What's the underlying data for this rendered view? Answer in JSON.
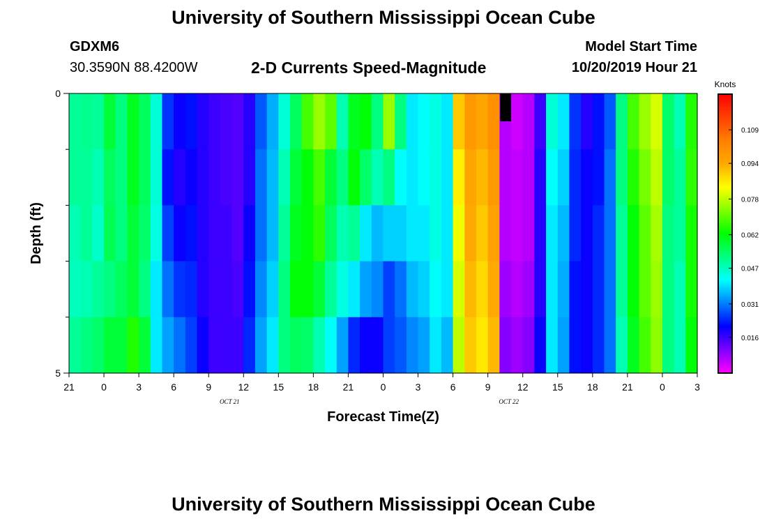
{
  "header": {
    "title": "University of Southern Mississippi Ocean Cube",
    "station_id": "GDXM6",
    "station_coords": "30.3590N 88.4200W",
    "plot_title": "2-D Currents Speed-Magnitude",
    "model_start_label": "Model Start Time",
    "model_start_value": "10/20/2019 Hour 21"
  },
  "footer": {
    "title": "University of Southern Mississippi Ocean Cube"
  },
  "chart_data": {
    "type": "heatmap",
    "xlabel": "Forecast Time(Z)",
    "ylabel": "Depth (ft)",
    "x_tick_labels": [
      "21",
      "0",
      "3",
      "6",
      "9",
      "12",
      "15",
      "18",
      "21",
      "0",
      "3",
      "6",
      "9",
      "12",
      "15",
      "18",
      "21",
      "0",
      "3"
    ],
    "date_labels": [
      {
        "label": "OCT 21",
        "tick_index": 4.6
      },
      {
        "label": "OCT 22",
        "tick_index": 12.6
      }
    ],
    "y_tick_labels": [
      "0",
      "5"
    ],
    "ylim": [
      0,
      5
    ],
    "time_steps": 54,
    "depth_levels": 5,
    "colorbar": {
      "unit": "Knots",
      "tick_labels": [
        "0.109",
        "0.094",
        "0.078",
        "0.062",
        "0.047",
        "0.031",
        "0.016"
      ],
      "tick_values": [
        0.109,
        0.094,
        0.078,
        0.062,
        0.047,
        0.031,
        0.016
      ],
      "range": [
        0.0,
        0.125
      ],
      "colors": [
        "#ff00ff",
        "#8000ff",
        "#0000ff",
        "#0080ff",
        "#00ffff",
        "#00ff80",
        "#00ff00",
        "#80ff00",
        "#ffff00",
        "#ffaa00",
        "#ff8000",
        "#ff4000",
        "#ff0000"
      ]
    },
    "missing_cells": [
      {
        "time_index": 37,
        "depth_index": 0
      }
    ],
    "speed_knots": [
      [
        0.05,
        0.051,
        0.05,
        0.058,
        0.052,
        0.06,
        0.055,
        0.045,
        0.025,
        0.02,
        0.022,
        0.018,
        0.016,
        0.015,
        0.014,
        0.018,
        0.028,
        0.035,
        0.045,
        0.055,
        0.068,
        0.075,
        0.07,
        0.048,
        0.06,
        0.062,
        0.052,
        0.075,
        0.052,
        0.04,
        0.042,
        0.044,
        0.04,
        0.09,
        0.098,
        0.095,
        0.1,
        0.006,
        0.004,
        0.006,
        0.016,
        0.045,
        0.04,
        0.025,
        0.018,
        0.022,
        0.028,
        0.052,
        0.068,
        0.075,
        0.08,
        0.054,
        0.048,
        0.065
      ],
      [
        0.05,
        0.05,
        0.048,
        0.055,
        0.052,
        0.06,
        0.055,
        0.045,
        0.022,
        0.018,
        0.02,
        0.018,
        0.016,
        0.015,
        0.014,
        0.018,
        0.03,
        0.036,
        0.048,
        0.058,
        0.062,
        0.068,
        0.058,
        0.052,
        0.062,
        0.054,
        0.048,
        0.052,
        0.042,
        0.04,
        0.042,
        0.044,
        0.04,
        0.085,
        0.095,
        0.092,
        0.098,
        0.006,
        0.005,
        0.006,
        0.018,
        0.042,
        0.038,
        0.024,
        0.02,
        0.022,
        0.03,
        0.052,
        0.065,
        0.072,
        0.078,
        0.054,
        0.05,
        0.066
      ],
      [
        0.048,
        0.05,
        0.046,
        0.056,
        0.052,
        0.058,
        0.054,
        0.044,
        0.026,
        0.02,
        0.022,
        0.018,
        0.016,
        0.016,
        0.014,
        0.02,
        0.03,
        0.036,
        0.05,
        0.06,
        0.062,
        0.066,
        0.055,
        0.048,
        0.05,
        0.04,
        0.036,
        0.038,
        0.038,
        0.04,
        0.04,
        0.044,
        0.04,
        0.082,
        0.094,
        0.09,
        0.096,
        0.006,
        0.005,
        0.006,
        0.018,
        0.04,
        0.036,
        0.024,
        0.02,
        0.024,
        0.03,
        0.05,
        0.062,
        0.07,
        0.076,
        0.052,
        0.05,
        0.064
      ],
      [
        0.047,
        0.048,
        0.05,
        0.052,
        0.055,
        0.058,
        0.052,
        0.04,
        0.03,
        0.025,
        0.024,
        0.018,
        0.016,
        0.016,
        0.015,
        0.022,
        0.032,
        0.038,
        0.052,
        0.062,
        0.062,
        0.058,
        0.05,
        0.044,
        0.04,
        0.034,
        0.032,
        0.026,
        0.03,
        0.036,
        0.038,
        0.042,
        0.04,
        0.08,
        0.092,
        0.088,
        0.094,
        0.008,
        0.006,
        0.008,
        0.018,
        0.04,
        0.035,
        0.022,
        0.02,
        0.024,
        0.03,
        0.05,
        0.062,
        0.07,
        0.075,
        0.052,
        0.048,
        0.064
      ],
      [
        0.05,
        0.052,
        0.054,
        0.058,
        0.058,
        0.065,
        0.058,
        0.04,
        0.034,
        0.03,
        0.026,
        0.02,
        0.016,
        0.016,
        0.016,
        0.024,
        0.034,
        0.04,
        0.052,
        0.055,
        0.054,
        0.048,
        0.042,
        0.034,
        0.024,
        0.02,
        0.02,
        0.026,
        0.028,
        0.032,
        0.034,
        0.04,
        0.036,
        0.078,
        0.09,
        0.086,
        0.092,
        0.01,
        0.008,
        0.01,
        0.02,
        0.04,
        0.034,
        0.022,
        0.02,
        0.024,
        0.03,
        0.048,
        0.06,
        0.068,
        0.074,
        0.052,
        0.048,
        0.062
      ]
    ]
  }
}
